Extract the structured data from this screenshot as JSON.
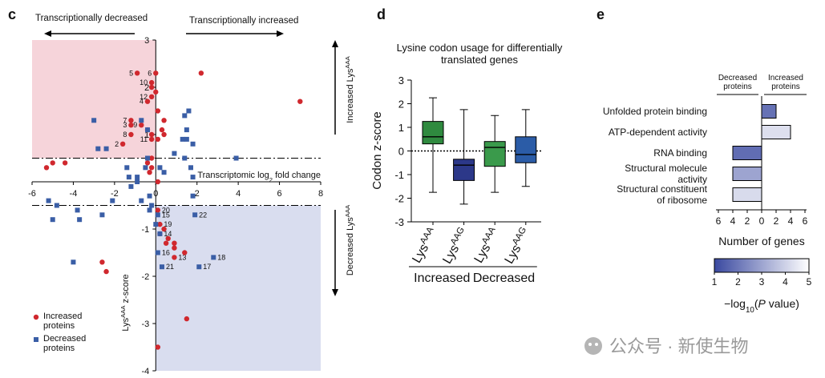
{
  "chart_data": [
    {
      "type": "scatter",
      "panel": "c",
      "top_left_label": "Transcriptionally decreased",
      "top_right_label": "Transcriptionally increased",
      "right_top_label": [
        {
          "text": "Increased Lys"
        },
        {
          "text": "AAA",
          "sup": true
        }
      ],
      "right_bottom_label": [
        {
          "text": "Decreased Lys"
        },
        {
          "text": "AAA",
          "sup": true
        }
      ],
      "xlabel": [
        {
          "text": "Transcriptomic log"
        },
        {
          "text": "2",
          "sub": true
        },
        {
          "text": " fold change"
        }
      ],
      "ylabel": [
        {
          "text": "Lys"
        },
        {
          "text": "AAA",
          "sup": true
        },
        {
          "text": " z-score"
        }
      ],
      "xlim": [
        -6,
        8
      ],
      "ylim": [
        -4,
        3
      ],
      "xticks": [
        -6,
        -4,
        -2,
        0,
        2,
        4,
        6,
        8
      ],
      "yticks": [
        -4,
        -3,
        -2,
        -1,
        1,
        2,
        3
      ],
      "thresholds": [
        0.5,
        -0.5
      ],
      "shade_colors": [
        "#f6d4da",
        "#d9ddef"
      ],
      "series": [
        {
          "name": "Increased proteins",
          "color": "#d0282e",
          "marker": "circle",
          "x": [
            -0.9,
            0,
            -0.2,
            -0.2,
            -0.2,
            -0.4,
            -1.2,
            -1.2,
            -0.7,
            -1.2,
            -0.2,
            -0.2,
            -1.6,
            2.2,
            7.0,
            0,
            0.1,
            0.3,
            0.4,
            0.4,
            0.1,
            -0.4,
            -0.2,
            -0.4,
            -0.2,
            -0.3,
            -5.0,
            -5.3,
            -4.4,
            0.1,
            0.1,
            0.2,
            0.4,
            0.6,
            0.5,
            0.9,
            0.9,
            0.9,
            -2.6,
            -2.4,
            1.4,
            1.5,
            0.1,
            0.2
          ],
          "y": [
            2.3,
            2.3,
            2.1,
            2.0,
            1.8,
            1.7,
            1.3,
            1.2,
            1.2,
            1.0,
            1.0,
            0.9,
            0.8,
            2.3,
            1.7,
            1.9,
            1.5,
            1.1,
            1.0,
            1.3,
            0.9,
            1.1,
            0.5,
            0.4,
            0.3,
            0.2,
            0.4,
            0.3,
            0.4,
            0.0,
            -0.6,
            -0.9,
            -1.0,
            -1.2,
            -1.3,
            -1.3,
            -1.4,
            -1.6,
            -1.7,
            -1.9,
            -1.5,
            -2.9,
            -3.5,
            -1.1
          ],
          "labels": [
            "5",
            "6",
            "10",
            null,
            "12",
            "4",
            "7",
            "3",
            "9",
            "8",
            null,
            "11",
            "2",
            null,
            null,
            null,
            null,
            null,
            null,
            null,
            null,
            null,
            null,
            null,
            null,
            null,
            null,
            null,
            null,
            null,
            "20",
            "19",
            null,
            null,
            null,
            null,
            null,
            "13",
            null,
            null,
            null,
            null,
            null,
            null
          ]
        },
        {
          "name": "Decreased proteins",
          "color": "#3a5ea6",
          "marker": "square",
          "x": [
            -3.0,
            -0.7,
            -0.4,
            1.5,
            1.6,
            1.4,
            1.5,
            1.3,
            -2.8,
            -2.4,
            1.8,
            3.9,
            0.9,
            1.4,
            1.7,
            1.8,
            -1.4,
            -1.3,
            -1.2,
            -0.9,
            -0.4,
            -0.5,
            0.2,
            0.4,
            -0.9,
            -5.2,
            -4.8,
            -5.0,
            -3.7,
            -3.8,
            -2.6,
            -2.1,
            -0.7,
            -0.3,
            0.1,
            1.8,
            1.9,
            0.2,
            0.3,
            2.8,
            2.1,
            -4.0,
            0,
            -0.2,
            -0.3,
            0.1
          ],
          "y": [
            1.3,
            1.3,
            1.1,
            1.1,
            1.5,
            1.4,
            0.9,
            0.9,
            0.7,
            0.7,
            0.8,
            0.5,
            0.6,
            0.5,
            0.3,
            0.1,
            0.3,
            0.1,
            -0.1,
            0.1,
            0.5,
            0.3,
            0.3,
            0.2,
            0.0,
            -0.4,
            -0.5,
            -0.8,
            -0.8,
            -0.6,
            -0.7,
            -0.4,
            -0.4,
            -0.6,
            -0.7,
            -0.3,
            -0.7,
            -1.1,
            -1.8,
            -1.6,
            -1.8,
            -1.7,
            -0.9,
            -0.5,
            -0.3,
            -1.5
          ],
          "labels": [
            null,
            null,
            null,
            null,
            null,
            null,
            null,
            null,
            null,
            null,
            null,
            null,
            null,
            null,
            null,
            null,
            null,
            null,
            null,
            null,
            null,
            null,
            null,
            null,
            null,
            null,
            null,
            null,
            null,
            null,
            null,
            null,
            null,
            null,
            "15",
            null,
            "22",
            "14",
            "21",
            "18",
            "17",
            null,
            null,
            null,
            null,
            "16"
          ]
        }
      ]
    },
    {
      "type": "box",
      "panel": "d",
      "title": "Lysine codon usage for differentially translated genes",
      "ylabel": "Codon z-score",
      "ylim": [
        -3,
        3
      ],
      "yticks": [
        -3,
        -2,
        -1,
        0,
        1,
        2,
        3
      ],
      "reference_line": 0,
      "categories": [
        [
          {
            "text": "Lys"
          },
          {
            "text": "AAA",
            "sup": true
          }
        ],
        [
          {
            "text": "Lys"
          },
          {
            "text": "AAG",
            "sup": true
          }
        ],
        [
          {
            "text": "Lys"
          },
          {
            "text": "AAA",
            "sup": true
          }
        ],
        [
          {
            "text": "Lys"
          },
          {
            "text": "AAG",
            "sup": true
          }
        ]
      ],
      "groups": [
        "Increased",
        "Decreased"
      ],
      "boxes": [
        {
          "color": "#2f8a3f",
          "whisker_low": -1.75,
          "q1": 0.3,
          "median": 0.6,
          "q3": 1.25,
          "whisker_high": 2.25
        },
        {
          "color": "#2c3889",
          "whisker_low": -2.25,
          "q1": -1.25,
          "median": -0.6,
          "q3": -0.35,
          "whisker_high": 1.75
        },
        {
          "color": "#3a9a4b",
          "whisker_low": -1.75,
          "q1": -0.65,
          "median": 0.15,
          "q3": 0.4,
          "whisker_high": 1.5
        },
        {
          "color": "#2b5ca7",
          "whisker_low": -1.5,
          "q1": -0.5,
          "median": -0.15,
          "q3": 0.6,
          "whisker_high": 1.75
        }
      ]
    },
    {
      "type": "facet_hbar",
      "panel": "e",
      "categories": [
        [
          "Unfolded protein binding"
        ],
        [
          "ATP-dependent activity"
        ],
        [
          "RNA binding"
        ],
        [
          "Structural molecule",
          "activity"
        ],
        [
          "Structural constituent",
          "of ribosome"
        ]
      ],
      "xlabel": "Number of genes",
      "facets": [
        {
          "name": "Decreased proteins",
          "direction": "left",
          "xlim": [
            0,
            6
          ],
          "xticks": [
            0,
            2,
            4,
            6
          ],
          "values": [
            null,
            null,
            4,
            4,
            4
          ],
          "neglog10p": [
            null,
            null,
            1.8,
            3.0,
            4.2
          ]
        },
        {
          "name": "Increased proteins",
          "direction": "right",
          "xlim": [
            0,
            6
          ],
          "xticks": [
            2,
            4,
            6
          ],
          "values": [
            2,
            4,
            null,
            null,
            null
          ],
          "neglog10p": [
            1.9,
            4.3,
            null,
            null,
            null
          ]
        }
      ],
      "colorbar": {
        "label": [
          {
            "text": "−log"
          },
          {
            "text": "10",
            "sub": true
          },
          {
            "text": "("
          },
          {
            "text": "P",
            "italic": true
          },
          {
            "text": " value)"
          }
        ],
        "clim": [
          1,
          5
        ],
        "ticks": [
          1,
          2,
          3,
          4,
          5
        ],
        "colors": [
          "#3a49a0",
          "#ffffff"
        ]
      }
    }
  ],
  "watermark": "公众号 · 新使生物"
}
